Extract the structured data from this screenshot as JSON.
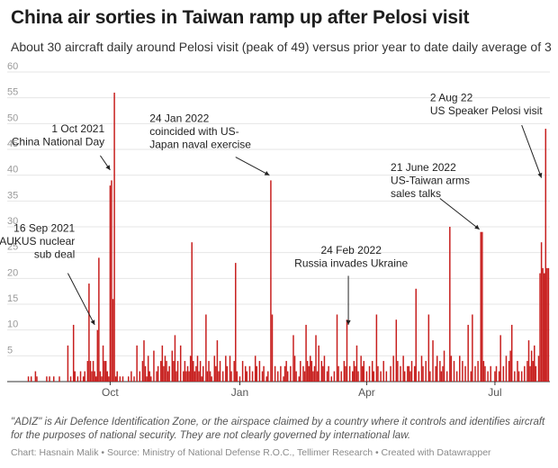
{
  "title": "China air sorties in Taiwan ramp up after Pelosi visit",
  "subtitle": "About 30 aircraft daily around Pelosi visit (peak of 49) versus prior year to date daily average of 3",
  "note": "\"ADIZ\" is Air Defence Identification Zone, or the airspace claimed by a country where it controls and identifies aircraft for the purposes of national security. They are not clearly governed by international law.",
  "footer": "Chart: Hasnain Malik • Source: Ministry of National Defense R.O.C., Tellimer Research • Created with Datawrapper",
  "chart_data": {
    "type": "bar",
    "bar_color": "#c71e1d",
    "ylim": [
      0,
      60
    ],
    "y_ticks": [
      0,
      5,
      10,
      15,
      20,
      25,
      30,
      35,
      40,
      45,
      50,
      55,
      60
    ],
    "y_tick_labels": [
      "",
      "5",
      "10",
      "15",
      "20",
      "25",
      "30",
      "35",
      "40",
      "45",
      "50",
      "55",
      "60"
    ],
    "grid": true,
    "xlabel": "",
    "ylabel": "",
    "x_range": [
      "2021-08-03",
      "2022-08-09"
    ],
    "x_ticks": [
      {
        "date": "2021-10-01",
        "label": "Oct"
      },
      {
        "date": "2022-01-01",
        "label": "Jan"
      },
      {
        "date": "2022-04-01",
        "label": "Apr"
      },
      {
        "date": "2022-07-01",
        "label": "Jul"
      }
    ],
    "series": [
      {
        "points": [
          [
            "2021-08-04",
            1
          ],
          [
            "2021-08-06",
            1
          ],
          [
            "2021-08-09",
            2
          ],
          [
            "2021-08-10",
            1
          ],
          [
            "2021-08-17",
            1
          ],
          [
            "2021-08-19",
            1
          ],
          [
            "2021-08-22",
            1
          ],
          [
            "2021-08-26",
            1
          ],
          [
            "2021-09-01",
            7
          ],
          [
            "2021-09-03",
            1
          ],
          [
            "2021-09-05",
            11
          ],
          [
            "2021-09-06",
            2
          ],
          [
            "2021-09-08",
            1
          ],
          [
            "2021-09-10",
            2
          ],
          [
            "2021-09-12",
            1
          ],
          [
            "2021-09-13",
            2
          ],
          [
            "2021-09-15",
            4
          ],
          [
            "2021-09-16",
            19
          ],
          [
            "2021-09-17",
            4
          ],
          [
            "2021-09-18",
            2
          ],
          [
            "2021-09-19",
            4
          ],
          [
            "2021-09-20",
            2
          ],
          [
            "2021-09-21",
            1
          ],
          [
            "2021-09-22",
            10
          ],
          [
            "2021-09-23",
            24
          ],
          [
            "2021-09-24",
            2
          ],
          [
            "2021-09-25",
            1
          ],
          [
            "2021-09-26",
            7
          ],
          [
            "2021-09-27",
            4
          ],
          [
            "2021-09-28",
            4
          ],
          [
            "2021-09-29",
            2
          ],
          [
            "2021-09-30",
            1
          ],
          [
            "2021-10-01",
            38
          ],
          [
            "2021-10-02",
            39
          ],
          [
            "2021-10-03",
            16
          ],
          [
            "2021-10-04",
            56
          ],
          [
            "2021-10-05",
            1
          ],
          [
            "2021-10-06",
            2
          ],
          [
            "2021-10-08",
            1
          ],
          [
            "2021-10-10",
            1
          ],
          [
            "2021-10-14",
            1
          ],
          [
            "2021-10-16",
            2
          ],
          [
            "2021-10-18",
            1
          ],
          [
            "2021-10-20",
            7
          ],
          [
            "2021-10-22",
            2
          ],
          [
            "2021-10-24",
            4
          ],
          [
            "2021-10-25",
            8
          ],
          [
            "2021-10-26",
            3
          ],
          [
            "2021-10-27",
            1
          ],
          [
            "2021-10-28",
            5
          ],
          [
            "2021-10-29",
            2
          ],
          [
            "2021-10-30",
            1
          ],
          [
            "2021-11-01",
            6
          ],
          [
            "2021-11-03",
            2
          ],
          [
            "2021-11-04",
            3
          ],
          [
            "2021-11-06",
            4
          ],
          [
            "2021-11-07",
            7
          ],
          [
            "2021-11-08",
            3
          ],
          [
            "2021-11-09",
            5
          ],
          [
            "2021-11-10",
            4
          ],
          [
            "2021-11-11",
            2
          ],
          [
            "2021-11-12",
            3
          ],
          [
            "2021-11-14",
            6
          ],
          [
            "2021-11-15",
            4
          ],
          [
            "2021-11-16",
            9
          ],
          [
            "2021-11-17",
            2
          ],
          [
            "2021-11-18",
            4
          ],
          [
            "2021-11-20",
            7
          ],
          [
            "2021-11-22",
            2
          ],
          [
            "2021-11-23",
            4
          ],
          [
            "2021-11-24",
            2
          ],
          [
            "2021-11-25",
            3
          ],
          [
            "2021-11-26",
            2
          ],
          [
            "2021-11-27",
            5
          ],
          [
            "2021-11-28",
            27
          ],
          [
            "2021-11-29",
            4
          ],
          [
            "2021-11-30",
            2
          ],
          [
            "2021-12-01",
            3
          ],
          [
            "2021-12-02",
            5
          ],
          [
            "2021-12-03",
            2
          ],
          [
            "2021-12-04",
            4
          ],
          [
            "2021-12-05",
            1
          ],
          [
            "2021-12-06",
            3
          ],
          [
            "2021-12-08",
            13
          ],
          [
            "2021-12-09",
            2
          ],
          [
            "2021-12-10",
            4
          ],
          [
            "2021-12-11",
            2
          ],
          [
            "2021-12-12",
            1
          ],
          [
            "2021-12-14",
            5
          ],
          [
            "2021-12-15",
            3
          ],
          [
            "2021-12-16",
            8
          ],
          [
            "2021-12-17",
            2
          ],
          [
            "2021-12-18",
            4
          ],
          [
            "2021-12-20",
            2
          ],
          [
            "2021-12-22",
            5
          ],
          [
            "2021-12-23",
            3
          ],
          [
            "2021-12-25",
            5
          ],
          [
            "2021-12-26",
            2
          ],
          [
            "2021-12-28",
            4
          ],
          [
            "2021-12-29",
            23
          ],
          [
            "2021-12-30",
            2
          ],
          [
            "2022-01-01",
            1
          ],
          [
            "2022-01-03",
            4
          ],
          [
            "2022-01-05",
            3
          ],
          [
            "2022-01-06",
            2
          ],
          [
            "2022-01-08",
            3
          ],
          [
            "2022-01-10",
            2
          ],
          [
            "2022-01-12",
            5
          ],
          [
            "2022-01-13",
            3
          ],
          [
            "2022-01-15",
            4
          ],
          [
            "2022-01-17",
            2
          ],
          [
            "2022-01-18",
            3
          ],
          [
            "2022-01-20",
            1
          ],
          [
            "2022-01-21",
            2
          ],
          [
            "2022-01-23",
            39
          ],
          [
            "2022-01-24",
            13
          ],
          [
            "2022-01-26",
            3
          ],
          [
            "2022-01-28",
            2
          ],
          [
            "2022-01-30",
            3
          ],
          [
            "2022-02-01",
            1
          ],
          [
            "2022-02-02",
            3
          ],
          [
            "2022-02-03",
            4
          ],
          [
            "2022-02-04",
            2
          ],
          [
            "2022-02-06",
            3
          ],
          [
            "2022-02-08",
            9
          ],
          [
            "2022-02-09",
            5
          ],
          [
            "2022-02-10",
            2
          ],
          [
            "2022-02-12",
            1
          ],
          [
            "2022-02-13",
            4
          ],
          [
            "2022-02-15",
            3
          ],
          [
            "2022-02-16",
            2
          ],
          [
            "2022-02-17",
            11
          ],
          [
            "2022-02-18",
            4
          ],
          [
            "2022-02-19",
            3
          ],
          [
            "2022-02-20",
            5
          ],
          [
            "2022-02-21",
            4
          ],
          [
            "2022-02-22",
            2
          ],
          [
            "2022-02-23",
            3
          ],
          [
            "2022-02-24",
            9
          ],
          [
            "2022-02-25",
            2
          ],
          [
            "2022-02-26",
            7
          ],
          [
            "2022-02-28",
            4
          ],
          [
            "2022-03-01",
            3
          ],
          [
            "2022-03-02",
            5
          ],
          [
            "2022-03-04",
            2
          ],
          [
            "2022-03-05",
            3
          ],
          [
            "2022-03-07",
            1
          ],
          [
            "2022-03-09",
            2
          ],
          [
            "2022-03-11",
            13
          ],
          [
            "2022-03-12",
            3
          ],
          [
            "2022-03-14",
            2
          ],
          [
            "2022-03-16",
            4
          ],
          [
            "2022-03-17",
            3
          ],
          [
            "2022-03-18",
            12
          ],
          [
            "2022-03-20",
            3
          ],
          [
            "2022-03-22",
            2
          ],
          [
            "2022-03-23",
            4
          ],
          [
            "2022-03-24",
            3
          ],
          [
            "2022-03-25",
            7
          ],
          [
            "2022-03-26",
            2
          ],
          [
            "2022-03-28",
            5
          ],
          [
            "2022-03-29",
            3
          ],
          [
            "2022-03-30",
            4
          ],
          [
            "2022-04-01",
            2
          ],
          [
            "2022-04-03",
            3
          ],
          [
            "2022-04-05",
            4
          ],
          [
            "2022-04-06",
            2
          ],
          [
            "2022-04-08",
            13
          ],
          [
            "2022-04-09",
            3
          ],
          [
            "2022-04-11",
            2
          ],
          [
            "2022-04-13",
            4
          ],
          [
            "2022-04-15",
            2
          ],
          [
            "2022-04-18",
            3
          ],
          [
            "2022-04-20",
            5
          ],
          [
            "2022-04-22",
            12
          ],
          [
            "2022-04-23",
            4
          ],
          [
            "2022-04-25",
            3
          ],
          [
            "2022-04-27",
            5
          ],
          [
            "2022-04-28",
            2
          ],
          [
            "2022-04-30",
            3
          ],
          [
            "2022-05-01",
            3
          ],
          [
            "2022-05-02",
            2
          ],
          [
            "2022-05-03",
            4
          ],
          [
            "2022-05-05",
            3
          ],
          [
            "2022-05-06",
            18
          ],
          [
            "2022-05-08",
            2
          ],
          [
            "2022-05-10",
            5
          ],
          [
            "2022-05-11",
            3
          ],
          [
            "2022-05-13",
            4
          ],
          [
            "2022-05-15",
            13
          ],
          [
            "2022-05-16",
            2
          ],
          [
            "2022-05-18",
            8
          ],
          [
            "2022-05-20",
            3
          ],
          [
            "2022-05-21",
            5
          ],
          [
            "2022-05-23",
            4
          ],
          [
            "2022-05-24",
            2
          ],
          [
            "2022-05-25",
            3
          ],
          [
            "2022-05-26",
            6
          ],
          [
            "2022-05-28",
            2
          ],
          [
            "2022-05-30",
            30
          ],
          [
            "2022-05-31",
            5
          ],
          [
            "2022-06-02",
            4
          ],
          [
            "2022-06-04",
            2
          ],
          [
            "2022-06-06",
            5
          ],
          [
            "2022-06-08",
            4
          ],
          [
            "2022-06-10",
            3
          ],
          [
            "2022-06-12",
            11
          ],
          [
            "2022-06-14",
            2
          ],
          [
            "2022-06-15",
            13
          ],
          [
            "2022-06-17",
            3
          ],
          [
            "2022-06-19",
            4
          ],
          [
            "2022-06-21",
            29
          ],
          [
            "2022-06-22",
            29
          ],
          [
            "2022-06-23",
            4
          ],
          [
            "2022-06-24",
            3
          ],
          [
            "2022-06-26",
            2
          ],
          [
            "2022-06-28",
            3
          ],
          [
            "2022-07-01",
            2
          ],
          [
            "2022-07-02",
            3
          ],
          [
            "2022-07-04",
            2
          ],
          [
            "2022-07-05",
            9
          ],
          [
            "2022-07-07",
            3
          ],
          [
            "2022-07-09",
            5
          ],
          [
            "2022-07-11",
            4
          ],
          [
            "2022-07-12",
            6
          ],
          [
            "2022-07-13",
            11
          ],
          [
            "2022-07-15",
            2
          ],
          [
            "2022-07-17",
            4
          ],
          [
            "2022-07-18",
            2
          ],
          [
            "2022-07-20",
            2
          ],
          [
            "2022-07-22",
            3
          ],
          [
            "2022-07-24",
            4
          ],
          [
            "2022-07-25",
            8
          ],
          [
            "2022-07-26",
            3
          ],
          [
            "2022-07-27",
            6
          ],
          [
            "2022-07-28",
            4
          ],
          [
            "2022-07-29",
            7
          ],
          [
            "2022-07-30",
            3
          ],
          [
            "2022-08-01",
            5
          ],
          [
            "2022-08-02",
            21
          ],
          [
            "2022-08-03",
            27
          ],
          [
            "2022-08-04",
            22
          ],
          [
            "2022-08-05",
            21
          ],
          [
            "2022-08-06",
            49
          ],
          [
            "2022-08-07",
            22
          ],
          [
            "2022-08-08",
            22
          ]
        ]
      }
    ],
    "annotations": [
      {
        "lines": [
          "1 Oct 2021",
          "China National Day"
        ],
        "align": "end",
        "text_date": "2021-09-27",
        "text_value": 48.3,
        "line_from": [
          "2021-09-24",
          43.8
        ],
        "line_to": [
          "2021-10-01",
          41
        ]
      },
      {
        "lines": [
          "16 Sep 2021",
          "AUKUS nuclear",
          "sub deal"
        ],
        "align": "end",
        "text_date": "2021-09-06",
        "text_value": 29,
        "line_from": [
          "2021-09-01",
          21
        ],
        "line_to": [
          "2021-09-20",
          11
        ]
      },
      {
        "lines": [
          "24 Jan 2022",
          "coincided with US-",
          "Japan naval exercise"
        ],
        "align": "start",
        "text_date": "2021-10-29",
        "text_value": 50.3,
        "line_from": [
          "2021-12-29",
          43.5
        ],
        "line_to": [
          "2022-01-22",
          40
        ]
      },
      {
        "lines": [
          "24 Feb 2022",
          "Russia invades Ukraine"
        ],
        "align": "middle",
        "text_date": "2022-03-21",
        "text_value": 24.8,
        "line_from": [
          "2022-03-19",
          20.5
        ],
        "line_to": [
          "2022-03-19",
          11
        ]
      },
      {
        "lines": [
          "21 June 2022",
          "US-Taiwan arms",
          "sales talks"
        ],
        "align": "start",
        "text_date": "2022-04-18",
        "text_value": 40.8,
        "line_from": [
          "2022-05-23",
          35.5
        ],
        "line_to": [
          "2022-06-20",
          29.5
        ]
      },
      {
        "lines": [
          "2 Aug 22",
          "US Speaker Pelosi visit"
        ],
        "align": "start",
        "text_date": "2022-05-16",
        "text_value": 54.3,
        "line_from": [
          "2022-07-20",
          49.7
        ],
        "line_to": [
          "2022-08-03",
          39.5
        ]
      }
    ]
  }
}
